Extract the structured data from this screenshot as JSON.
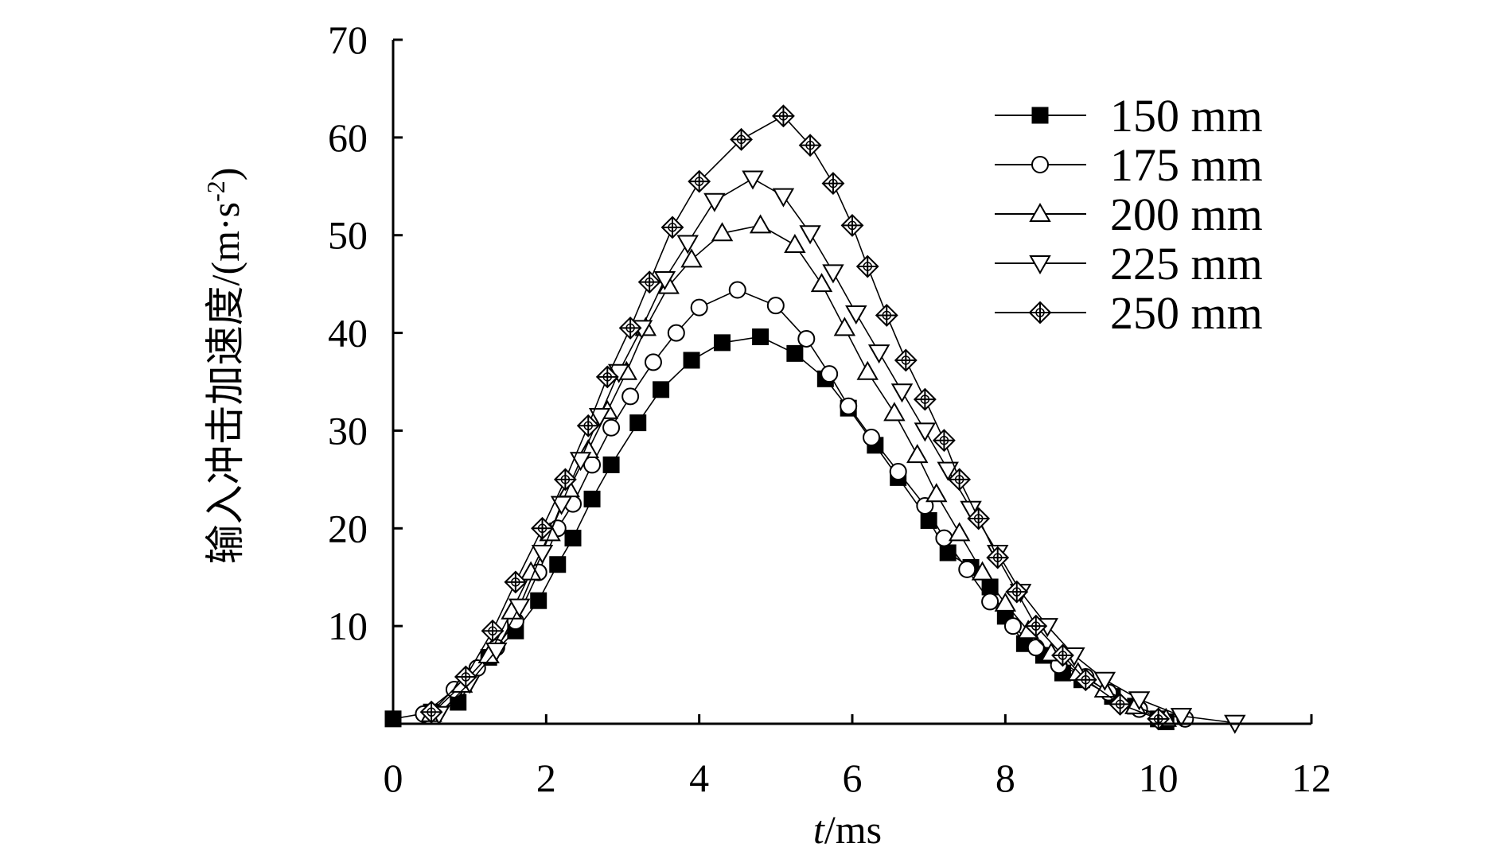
{
  "chart_data": {
    "type": "line",
    "title": "",
    "xlabel_italic": "t",
    "xlabel_rest": "/ms",
    "ylabel": "输入冲击加速度/(m·s",
    "ylabel_sup": "-2",
    "ylabel_close": ")",
    "xlim": [
      0,
      12
    ],
    "ylim": [
      0,
      70
    ],
    "xticks": [
      0,
      2,
      4,
      6,
      8,
      10,
      12
    ],
    "xtick_labels": [
      "0",
      "2",
      "4",
      "6",
      "8",
      "10",
      "12"
    ],
    "yticks": [
      10,
      20,
      30,
      40,
      50,
      60,
      70
    ],
    "ytick_labels": [
      "10",
      "20",
      "30",
      "40",
      "50",
      "60",
      "70"
    ],
    "grid": false,
    "legend_position": "top-right",
    "series": [
      {
        "name": "150 mm",
        "marker": "filled-square",
        "x": [
          0.0,
          0.5,
          0.85,
          1.25,
          1.6,
          1.9,
          2.15,
          2.35,
          2.6,
          2.85,
          3.2,
          3.5,
          3.9,
          4.3,
          4.8,
          5.25,
          5.65,
          5.95,
          6.3,
          6.6,
          7.0,
          7.25,
          7.55,
          7.8,
          8.0,
          8.25,
          8.5,
          8.75,
          9.0,
          9.4,
          9.7,
          10.0,
          10.1
        ],
        "y": [
          0.5,
          1.2,
          2.2,
          6.8,
          9.5,
          12.6,
          16.3,
          19.0,
          23.0,
          26.5,
          30.8,
          34.2,
          37.2,
          39.0,
          39.6,
          37.9,
          35.3,
          32.3,
          28.5,
          25.2,
          20.8,
          17.5,
          16.0,
          14.0,
          11.0,
          8.2,
          7.0,
          5.2,
          4.5,
          2.8,
          1.8,
          0.5,
          0.2
        ]
      },
      {
        "name": "175 mm",
        "marker": "open-circle",
        "x": [
          0.4,
          0.8,
          1.1,
          1.35,
          1.6,
          1.9,
          2.15,
          2.35,
          2.6,
          2.85,
          3.1,
          3.4,
          3.7,
          4.0,
          4.5,
          5.0,
          5.4,
          5.7,
          5.95,
          6.25,
          6.6,
          6.95,
          7.2,
          7.5,
          7.8,
          8.1,
          8.4,
          8.7,
          9.05,
          9.35,
          9.75,
          10.35
        ],
        "y": [
          1.0,
          3.5,
          5.7,
          7.8,
          10.5,
          15.5,
          20.0,
          22.5,
          26.5,
          30.3,
          33.5,
          37.0,
          40.0,
          42.6,
          44.4,
          42.8,
          39.4,
          35.8,
          32.5,
          29.3,
          25.8,
          22.3,
          19.0,
          15.8,
          12.5,
          10.0,
          7.8,
          6.0,
          4.8,
          3.2,
          1.5,
          0.5
        ]
      },
      {
        "name": "200 mm",
        "marker": "open-triangle-up",
        "x": [
          0.5,
          0.9,
          1.25,
          1.55,
          1.8,
          2.05,
          2.3,
          2.55,
          2.8,
          3.05,
          3.3,
          3.6,
          3.9,
          4.3,
          4.8,
          5.25,
          5.6,
          5.9,
          6.2,
          6.55,
          6.85,
          7.1,
          7.4,
          7.7,
          8.0,
          8.3,
          8.6,
          8.95,
          9.3,
          9.7,
          10.1
        ],
        "y": [
          1.0,
          4.0,
          7.0,
          11.5,
          15.5,
          19.5,
          24.0,
          28.0,
          32.0,
          36.0,
          40.5,
          44.8,
          47.5,
          50.2,
          51.0,
          49.0,
          45.0,
          40.5,
          36.0,
          31.8,
          27.5,
          23.5,
          19.5,
          15.5,
          12.3,
          9.5,
          7.2,
          5.2,
          3.5,
          1.8,
          0.5
        ]
      },
      {
        "name": "225 mm",
        "marker": "open-triangle-down",
        "x": [
          0.6,
          1.0,
          1.35,
          1.65,
          1.95,
          2.2,
          2.45,
          2.7,
          2.95,
          3.25,
          3.55,
          3.85,
          4.2,
          4.7,
          5.1,
          5.45,
          5.75,
          6.05,
          6.35,
          6.65,
          6.95,
          7.25,
          7.55,
          7.9,
          8.2,
          8.55,
          8.9,
          9.3,
          9.75,
          10.3,
          11.0
        ],
        "y": [
          1.0,
          4.2,
          7.5,
          12.0,
          17.5,
          22.5,
          27.0,
          31.5,
          36.0,
          40.5,
          45.5,
          49.2,
          53.5,
          55.8,
          54.0,
          50.2,
          46.2,
          42.0,
          38.0,
          34.0,
          30.0,
          26.0,
          22.0,
          17.5,
          13.5,
          10.0,
          7.0,
          4.5,
          2.5,
          0.8,
          0.1
        ]
      },
      {
        "name": "250 mm",
        "marker": "crossed-diamond",
        "x": [
          0.5,
          0.95,
          1.3,
          1.6,
          1.95,
          2.25,
          2.55,
          2.8,
          3.1,
          3.35,
          3.65,
          4.0,
          4.55,
          5.1,
          5.45,
          5.75,
          6.0,
          6.2,
          6.45,
          6.7,
          6.95,
          7.2,
          7.4,
          7.65,
          7.9,
          8.15,
          8.4,
          8.75,
          9.05,
          9.5,
          10.0
        ],
        "y": [
          1.2,
          4.8,
          9.5,
          14.5,
          20.0,
          25.0,
          30.5,
          35.5,
          40.5,
          45.2,
          50.8,
          55.5,
          59.8,
          62.2,
          59.2,
          55.3,
          51.0,
          46.8,
          41.8,
          37.2,
          33.2,
          29.0,
          25.0,
          21.0,
          17.0,
          13.5,
          10.0,
          7.0,
          4.5,
          2.0,
          0.5
        ]
      }
    ]
  }
}
